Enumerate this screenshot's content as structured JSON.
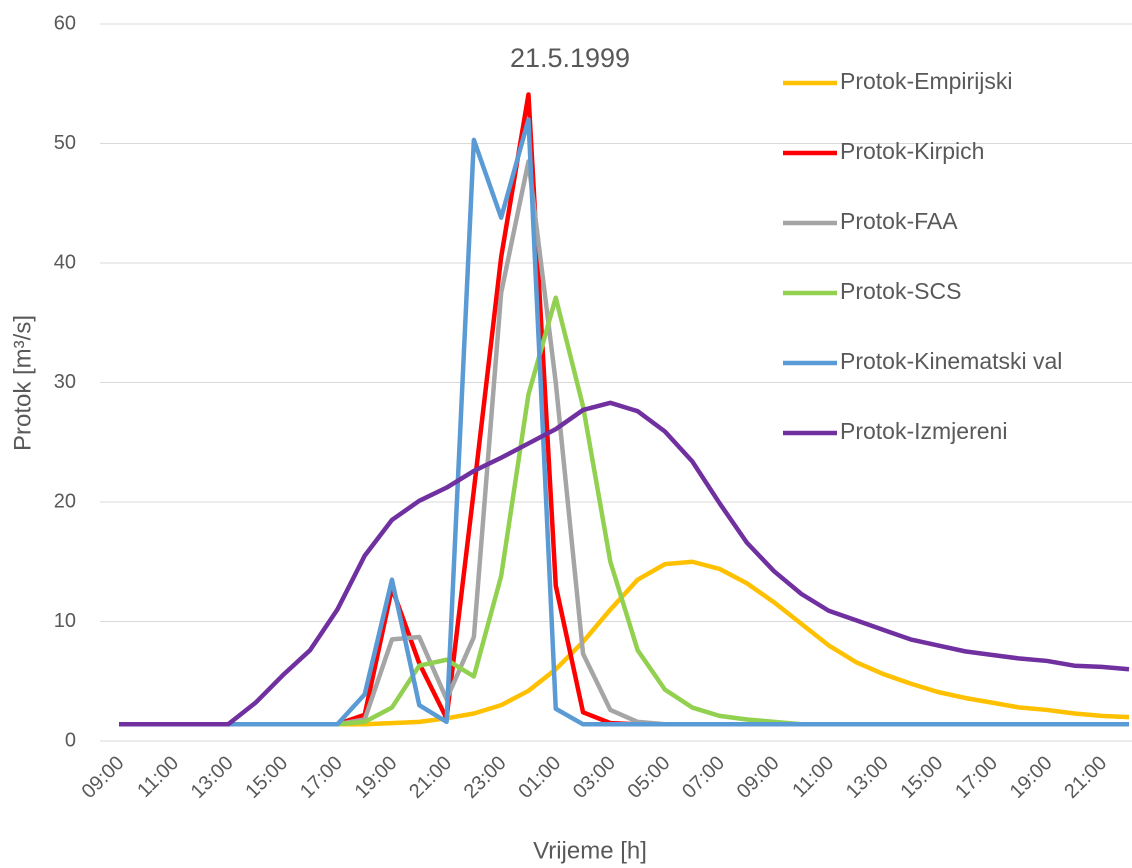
{
  "chart_data": {
    "type": "line",
    "title": "21.5.1999",
    "x_label": "Vrijeme [h]",
    "y_label": "Protok [m³/s]",
    "categories": [
      "09:00",
      null,
      "11:00",
      null,
      "13:00",
      null,
      "15:00",
      null,
      "17:00",
      null,
      "19:00",
      null,
      "21:00",
      null,
      "23:00",
      null,
      "01:00",
      null,
      "03:00",
      null,
      "05:00",
      null,
      "07:00",
      null,
      "09:00",
      null,
      "11:00",
      null,
      "13:00",
      null,
      "15:00",
      null,
      "17:00",
      null,
      "19:00",
      null,
      "21:00",
      null
    ],
    "ylim": [
      0,
      60
    ],
    "yticks": [
      0,
      10,
      20,
      30,
      40,
      50,
      60
    ],
    "grid": true,
    "legend": "right",
    "series": [
      {
        "name": "Protok-Empirijski",
        "color": "#ffc000",
        "values": [
          1.4,
          1.4,
          1.4,
          1.4,
          1.4,
          1.4,
          1.4,
          1.4,
          1.4,
          1.4,
          1.5,
          1.6,
          1.9,
          2.3,
          3.0,
          4.2,
          6.0,
          8.3,
          11.0,
          13.5,
          14.8,
          15.0,
          14.4,
          13.2,
          11.6,
          9.8,
          8.0,
          6.6,
          5.6,
          4.8,
          4.1,
          3.6,
          3.2,
          2.8,
          2.6,
          2.3,
          2.1,
          2.0
        ]
      },
      {
        "name": "Protok-Kirpich",
        "color": "#ff0000",
        "values": [
          1.4,
          1.4,
          1.4,
          1.4,
          1.4,
          1.4,
          1.4,
          1.4,
          1.4,
          2.2,
          12.8,
          6.5,
          1.9,
          21.0,
          40.5,
          54.1,
          13.0,
          2.4,
          1.5,
          1.4,
          1.4,
          1.4,
          1.4,
          1.4,
          1.4,
          1.4,
          1.4,
          1.4,
          1.4,
          1.4,
          1.4,
          1.4,
          1.4,
          1.4,
          1.4,
          1.4,
          1.4,
          1.4
        ]
      },
      {
        "name": "Protok-FAA",
        "color": "#a5a5a5",
        "values": [
          1.4,
          1.4,
          1.4,
          1.4,
          1.4,
          1.4,
          1.4,
          1.4,
          1.4,
          1.8,
          8.5,
          8.7,
          3.5,
          8.7,
          37.5,
          48.5,
          30.0,
          7.3,
          2.6,
          1.6,
          1.4,
          1.4,
          1.4,
          1.4,
          1.4,
          1.4,
          1.4,
          1.4,
          1.4,
          1.4,
          1.4,
          1.4,
          1.4,
          1.4,
          1.4,
          1.4,
          1.4,
          1.4
        ]
      },
      {
        "name": "Protok-SCS",
        "color": "#92d050",
        "values": [
          1.4,
          1.4,
          1.4,
          1.4,
          1.4,
          1.4,
          1.4,
          1.4,
          1.4,
          1.6,
          2.8,
          6.3,
          6.8,
          5.4,
          13.8,
          29.0,
          37.1,
          28.0,
          15.0,
          7.6,
          4.3,
          2.8,
          2.1,
          1.8,
          1.6,
          1.4,
          1.4,
          1.4,
          1.4,
          1.4,
          1.4,
          1.4,
          1.4,
          1.4,
          1.4,
          1.4,
          1.4,
          1.4
        ]
      },
      {
        "name": "Protok-Kinematski val",
        "color": "#5b9bd5",
        "values": [
          1.4,
          1.4,
          1.4,
          1.4,
          1.4,
          1.4,
          1.4,
          1.4,
          1.4,
          3.9,
          13.5,
          3.0,
          1.6,
          50.3,
          43.8,
          52.0,
          2.7,
          1.4,
          1.4,
          1.4,
          1.4,
          1.4,
          1.4,
          1.4,
          1.4,
          1.4,
          1.4,
          1.4,
          1.4,
          1.4,
          1.4,
          1.4,
          1.4,
          1.4,
          1.4,
          1.4,
          1.4,
          1.4
        ]
      },
      {
        "name": "Protok-Izmjereni",
        "color": "#7030a0",
        "values": [
          1.4,
          1.4,
          1.4,
          1.4,
          1.4,
          3.2,
          5.5,
          7.6,
          11.0,
          15.5,
          18.5,
          20.1,
          21.2,
          22.6,
          23.7,
          24.9,
          26.1,
          27.7,
          28.3,
          27.6,
          25.9,
          23.4,
          19.9,
          16.6,
          14.2,
          12.3,
          10.9,
          10.1,
          9.3,
          8.5,
          8.0,
          7.5,
          7.2,
          6.9,
          6.7,
          6.3,
          6.2,
          6.0
        ]
      }
    ]
  }
}
